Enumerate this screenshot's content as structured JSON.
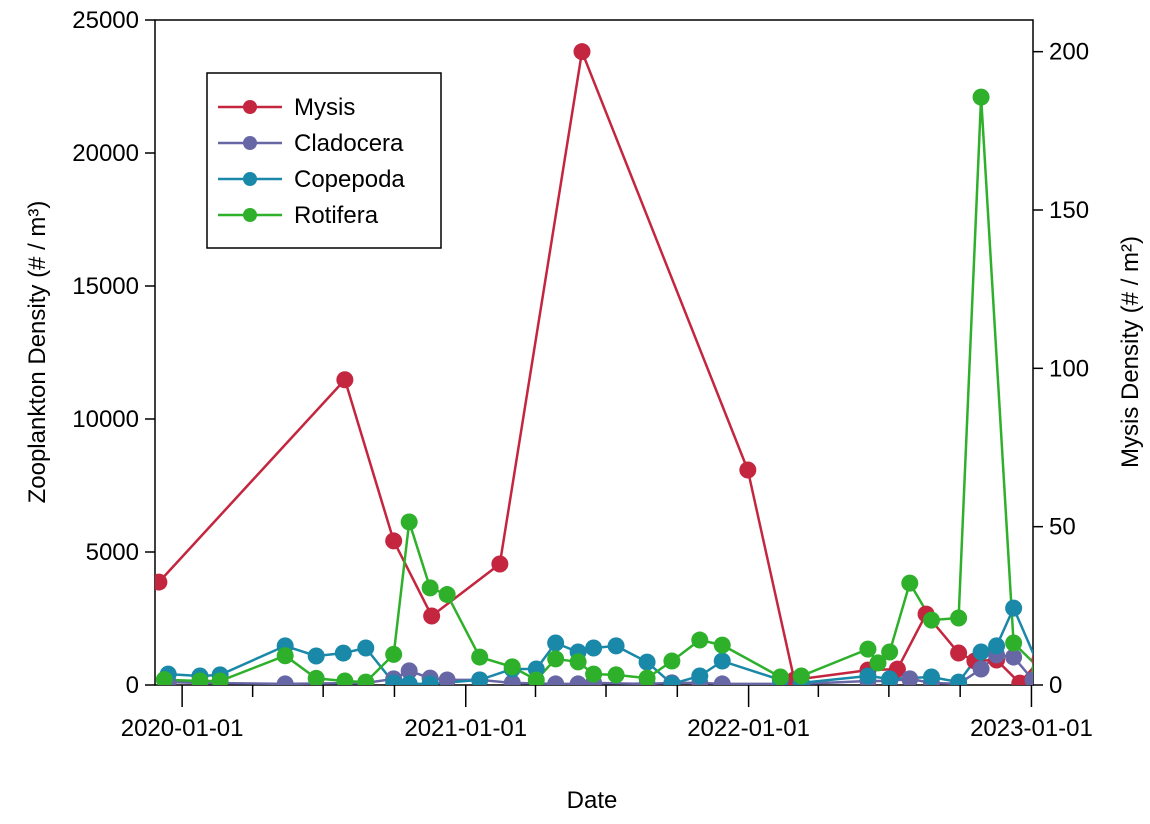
{
  "chart_data": {
    "type": "line",
    "xlabel": "Date",
    "ylabel": "Zooplankton Density (# / m³)",
    "y2label": "Mysis Density (# / m²)",
    "xlim": [
      "2019-11-27",
      "2023-01-03"
    ],
    "xticks": [
      "2020-01-01",
      "2021-01-01",
      "2022-01-01",
      "2023-01-01"
    ],
    "xminorticks": [
      "2020-04-01",
      "2020-07-01",
      "2020-10-01",
      "2021-04-01",
      "2021-07-01",
      "2021-10-01",
      "2022-04-01",
      "2022-07-01",
      "2022-10-01"
    ],
    "ylim": [
      0,
      25000
    ],
    "yticks": [
      0,
      5000,
      10000,
      15000,
      20000,
      25000
    ],
    "y2lim": [
      0,
      210
    ],
    "y2ticks": [
      0,
      50,
      100,
      150,
      200
    ],
    "legend": "upper left",
    "series": [
      {
        "name": "Mysis",
        "color": "#c4253f",
        "axis": "y2",
        "x": [
          "2019-12-02",
          "2020-07-29",
          "2020-09-30",
          "2020-11-18",
          "2021-02-14",
          "2021-05-31",
          "2021-12-31",
          "2022-03-01",
          "2022-06-04",
          "2022-07-12",
          "2022-08-18",
          "2022-09-29",
          "2022-10-20",
          "2022-11-17",
          "2022-12-17",
          "2023-01-12"
        ],
        "values": [
          32.5,
          96.4,
          45.5,
          21.8,
          38.2,
          200,
          67.9,
          1.6,
          4.7,
          5,
          22.4,
          10.1,
          7.6,
          7.9,
          0.6,
          8
        ]
      },
      {
        "name": "Cladocera",
        "color": "#6767a6",
        "x": [
          "2019-12-14",
          "2020-01-24",
          "2020-05-13",
          "2020-08-25",
          "2020-09-30",
          "2020-10-20",
          "2020-11-16",
          "2020-12-08",
          "2021-01-19",
          "2021-03-02",
          "2021-04-27",
          "2021-05-26",
          "2021-06-15",
          "2021-08-23",
          "2021-09-24",
          "2021-10-30",
          "2021-11-28",
          "2022-03-10",
          "2022-06-04",
          "2022-07-02",
          "2022-07-28",
          "2022-08-25",
          "2022-09-29",
          "2022-10-28",
          "2022-11-17",
          "2022-12-09",
          "2023-01-03"
        ],
        "values": [
          110,
          80,
          40,
          80,
          230,
          530,
          260,
          190,
          190,
          80,
          40,
          40,
          80,
          40,
          80,
          80,
          40,
          40,
          150,
          150,
          230,
          80,
          40,
          600,
          1130,
          1050,
          190
        ]
      },
      {
        "name": "Copepoda",
        "color": "#1a88a8",
        "x": [
          "2019-12-14",
          "2020-01-24",
          "2020-02-19",
          "2020-05-13",
          "2020-06-22",
          "2020-07-27",
          "2020-08-25",
          "2020-09-30",
          "2020-10-20",
          "2020-11-16",
          "2021-01-19",
          "2021-03-02",
          "2021-04-02",
          "2021-04-27",
          "2021-05-26",
          "2021-06-15",
          "2021-07-14",
          "2021-08-23",
          "2021-09-24",
          "2021-10-30",
          "2021-11-28",
          "2022-02-11",
          "2022-03-10",
          "2022-06-04",
          "2022-07-02",
          "2022-08-25",
          "2022-09-29",
          "2022-10-28",
          "2022-11-17",
          "2022-12-09",
          "2023-01-12"
        ],
        "values": [
          410,
          340,
          380,
          1470,
          1090,
          1200,
          1390,
          80,
          40,
          40,
          190,
          600,
          600,
          1580,
          1240,
          1390,
          1470,
          860,
          40,
          340,
          900,
          190,
          80,
          340,
          230,
          300,
          110,
          1240,
          1470,
          2890,
          600
        ]
      },
      {
        "name": "Rotifera",
        "color": "#2fb02b",
        "x": [
          "2019-12-09",
          "2020-01-24",
          "2020-02-19",
          "2020-05-13",
          "2020-06-22",
          "2020-07-29",
          "2020-08-25",
          "2020-09-30",
          "2020-10-20",
          "2020-11-16",
          "2020-12-08",
          "2021-01-19",
          "2021-03-02",
          "2021-04-02",
          "2021-04-27",
          "2021-05-26",
          "2021-06-15",
          "2021-07-14",
          "2021-08-23",
          "2021-09-24",
          "2021-10-30",
          "2021-11-28",
          "2022-02-11",
          "2022-03-10",
          "2022-06-04",
          "2022-06-17",
          "2022-07-02",
          "2022-07-28",
          "2022-08-25",
          "2022-09-29",
          "2022-10-28",
          "2022-12-09",
          "2023-01-12"
        ],
        "values": [
          200,
          150,
          150,
          1100,
          250,
          150,
          110,
          1150,
          6130,
          3650,
          3400,
          1050,
          680,
          190,
          980,
          870,
          410,
          380,
          260,
          900,
          1690,
          1500,
          300,
          340,
          1350,
          830,
          1240,
          3830,
          2440,
          2520,
          22100,
          1580,
          600
        ]
      }
    ]
  }
}
